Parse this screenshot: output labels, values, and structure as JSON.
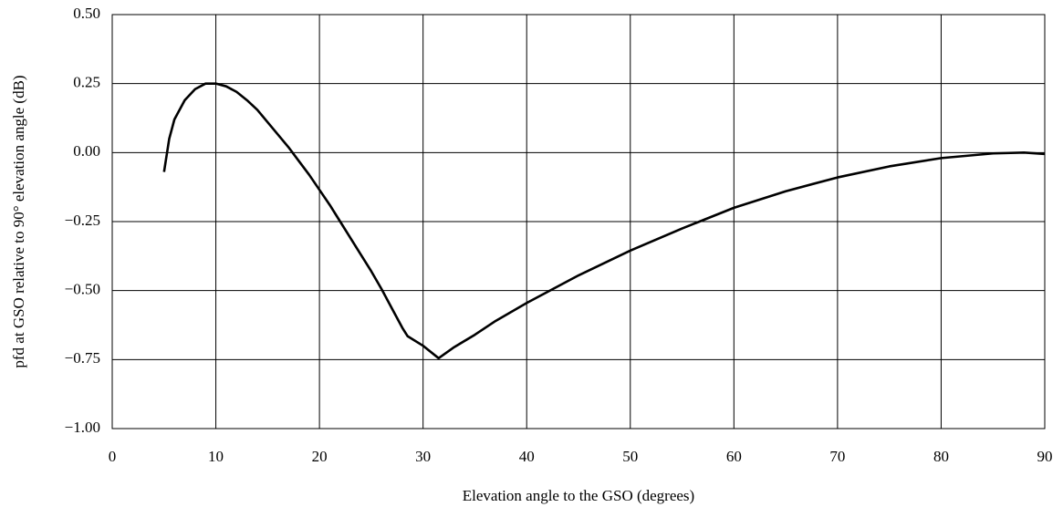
{
  "chart_data": {
    "type": "line",
    "xlabel": "Elevation angle to the GSO (degrees)",
    "ylabel": "pfd at GSO relative to 90° elevation angle (dB)",
    "x": [
      5,
      5.5,
      6,
      7,
      8,
      9,
      10,
      11,
      12,
      13,
      14,
      15,
      16,
      17,
      18,
      19,
      20,
      21,
      22,
      23,
      24,
      25,
      26,
      27,
      28,
      28.5,
      30,
      31.5,
      33,
      35,
      37,
      40,
      45,
      50,
      55,
      60,
      65,
      70,
      75,
      80,
      85,
      88,
      90
    ],
    "values": [
      -0.07,
      0.05,
      0.12,
      0.19,
      0.23,
      0.25,
      0.25,
      0.24,
      0.22,
      0.19,
      0.155,
      0.11,
      0.065,
      0.02,
      -0.03,
      -0.08,
      -0.135,
      -0.19,
      -0.25,
      -0.31,
      -0.37,
      -0.43,
      -0.495,
      -0.565,
      -0.635,
      -0.665,
      -0.7,
      -0.745,
      -0.705,
      -0.66,
      -0.61,
      -0.545,
      -0.445,
      -0.355,
      -0.275,
      -0.2,
      -0.14,
      -0.09,
      -0.05,
      -0.02,
      -0.003,
      0.0,
      -0.005
    ],
    "color": "#000000",
    "xlim": [
      0,
      90
    ],
    "xticks": [
      0,
      10,
      20,
      30,
      40,
      50,
      60,
      70,
      80,
      90
    ],
    "ylim": [
      -1,
      0.5
    ],
    "yticks": [
      {
        "value": -1,
        "label": "−1.00"
      },
      {
        "value": -0.75,
        "label": "−0.75"
      },
      {
        "value": -0.5,
        "label": "−0.50"
      },
      {
        "value": -0.25,
        "label": "−0.25"
      },
      {
        "value": 0,
        "label": "0.00"
      },
      {
        "value": 0.25,
        "label": "0.25"
      },
      {
        "value": 0.5,
        "label": "0.50"
      }
    ],
    "grid": true
  }
}
